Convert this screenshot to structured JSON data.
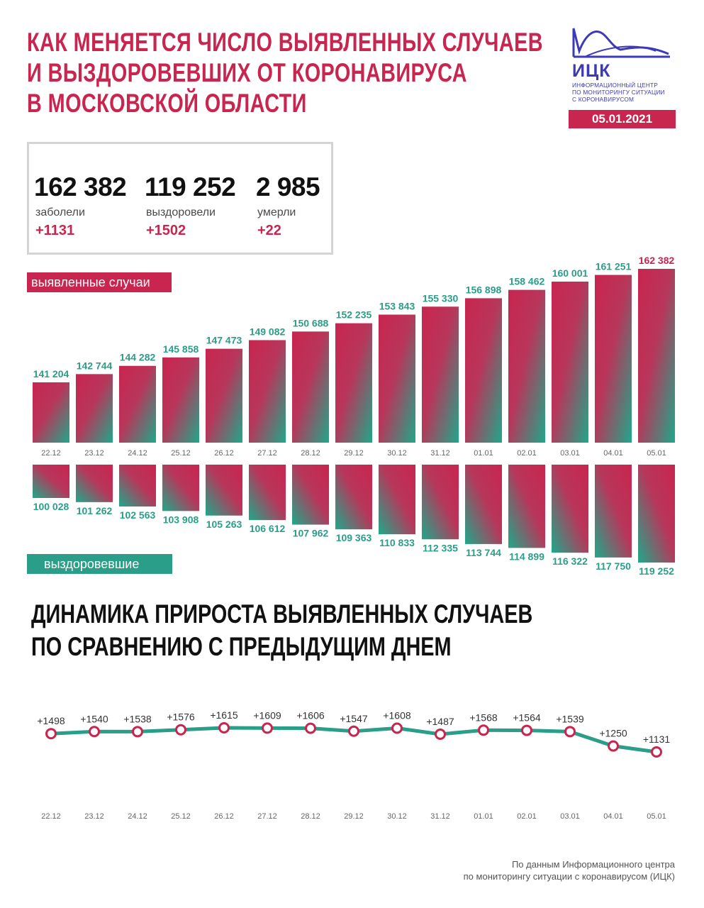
{
  "header": {
    "title_lines": [
      "КАК МЕНЯЕТСЯ ЧИСЛО ВЫЯВЛЕННЫХ СЛУЧАЕВ",
      "И ВЫЗДОРОВЕВШИХ ОТ КОРОНАВИРУСА",
      "В МОСКОВСКОЙ ОБЛАСТИ"
    ],
    "logo_name": "ИЦК",
    "logo_sub_lines": [
      "ИНФОРМАЦИОННЫЙ ЦЕНТР",
      "ПО МОНИТОРИНГУ СИТУАЦИИ",
      "С КОРОНАВИРУСОМ"
    ],
    "date": "05.01.2021"
  },
  "stats": {
    "cases": {
      "value": "162 382",
      "label": "заболели",
      "delta": "+1131"
    },
    "recovered": {
      "value": "119 252",
      "label": "выздоровели",
      "delta": "+1502"
    },
    "deaths": {
      "value": "2 985",
      "label": "умерли",
      "delta": "+22"
    }
  },
  "legend": {
    "cases": "выявленные случаи",
    "recovered": "выздоровевшие"
  },
  "section2": {
    "title_lines": [
      "ДИНАМИКА ПРИРОСТА ВЫЯВЛЕННЫХ СЛУЧАЕВ",
      "ПО СРАВНЕНИЮ С ПРЕДЫДУЩИМ ДНЕМ"
    ]
  },
  "footnote_lines": [
    "По данным Информационного центра",
    "по мониторингу ситуации с коронавирусом (ИЦК)"
  ],
  "colors": {
    "accent": "#c8254f",
    "teal": "#2a9e88",
    "logo": "#3c3ab4"
  },
  "chart_data": [
    {
      "type": "bar",
      "categories": [
        "22.12",
        "23.12",
        "24.12",
        "25.12",
        "26.12",
        "27.12",
        "28.12",
        "29.12",
        "30.12",
        "31.12",
        "01.01",
        "02.01",
        "03.01",
        "04.01",
        "05.01"
      ],
      "series": [
        {
          "name": "выявленные случаи",
          "values": [
            141204,
            142744,
            144282,
            145858,
            147473,
            149082,
            150688,
            152235,
            153843,
            155330,
            156898,
            158462,
            160001,
            161251,
            162382
          ],
          "labels": [
            "141 204",
            "142 744",
            "144 282",
            "145 858",
            "147 473",
            "149 082",
            "150 688",
            "152 235",
            "153 843",
            "155 330",
            "156 898",
            "158 462",
            "160 001",
            "161 251",
            "162 382"
          ]
        },
        {
          "name": "выздоровевшие",
          "values": [
            100028,
            101262,
            102563,
            103908,
            105263,
            106612,
            107962,
            109363,
            110833,
            112335,
            113744,
            114899,
            116322,
            117750,
            119252
          ],
          "labels": [
            "100 028",
            "101 262",
            "102 563",
            "103 908",
            "105 263",
            "106 612",
            "107 962",
            "109 363",
            "110 833",
            "112 335",
            "113 744",
            "114 899",
            "116 322",
            "117 750",
            "119 252"
          ]
        }
      ]
    },
    {
      "type": "line",
      "x": [
        "22.12",
        "23.12",
        "24.12",
        "25.12",
        "26.12",
        "27.12",
        "28.12",
        "29.12",
        "30.12",
        "31.12",
        "01.01",
        "02.01",
        "03.01",
        "04.01",
        "05.01"
      ],
      "values": [
        1498,
        1540,
        1538,
        1576,
        1615,
        1609,
        1606,
        1547,
        1608,
        1487,
        1568,
        1564,
        1539,
        1250,
        1131
      ],
      "labels": [
        "+1498",
        "+1540",
        "+1538",
        "+1576",
        "+1615",
        "+1609",
        "+1606",
        "+1547",
        "+1608",
        "+1487",
        "+1568",
        "+1564",
        "+1539",
        "+1250",
        "+1131"
      ]
    }
  ]
}
